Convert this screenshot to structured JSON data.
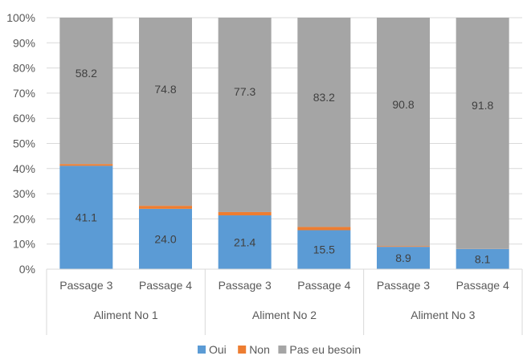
{
  "chart_data": {
    "type": "bar",
    "stacked": true,
    "percent_stacked": true,
    "title": "",
    "xlabel": "",
    "ylabel": "",
    "ylim": [
      0,
      100
    ],
    "y_ticks": [
      "0%",
      "10%",
      "20%",
      "30%",
      "40%",
      "50%",
      "60%",
      "70%",
      "80%",
      "90%",
      "100%"
    ],
    "grid": true,
    "legend_position": "bottom",
    "groups": [
      {
        "label": "Aliment No 1",
        "categories": [
          "Passage 3",
          "Passage 4"
        ]
      },
      {
        "label": "Aliment No 2",
        "categories": [
          "Passage 3",
          "Passage 4"
        ]
      },
      {
        "label": "Aliment No 3",
        "categories": [
          "Passage 3",
          "Passage 4"
        ]
      }
    ],
    "categories": [
      "Passage 3",
      "Passage 4",
      "Passage 3",
      "Passage 4",
      "Passage 3",
      "Passage 4"
    ],
    "series": [
      {
        "name": "Oui",
        "color": "#5B9BD5",
        "values": [
          41.1,
          24.0,
          21.4,
          15.5,
          8.9,
          8.1
        ],
        "labels": [
          "41.1",
          "24.0",
          "21.4",
          "15.5",
          "8.9",
          "8.1"
        ]
      },
      {
        "name": "Non",
        "color": "#ED7D31",
        "values": [
          0.7,
          1.2,
          1.3,
          1.3,
          0.3,
          0.1
        ],
        "labels": [
          "",
          "",
          "",
          "",
          "",
          ""
        ]
      },
      {
        "name": "Pas eu besoin",
        "color": "#A5A5A5",
        "values": [
          58.2,
          74.8,
          77.3,
          83.2,
          90.8,
          91.8
        ],
        "labels": [
          "58.2",
          "74.8",
          "77.3",
          "83.2",
          "90.8",
          "91.8"
        ]
      }
    ]
  }
}
